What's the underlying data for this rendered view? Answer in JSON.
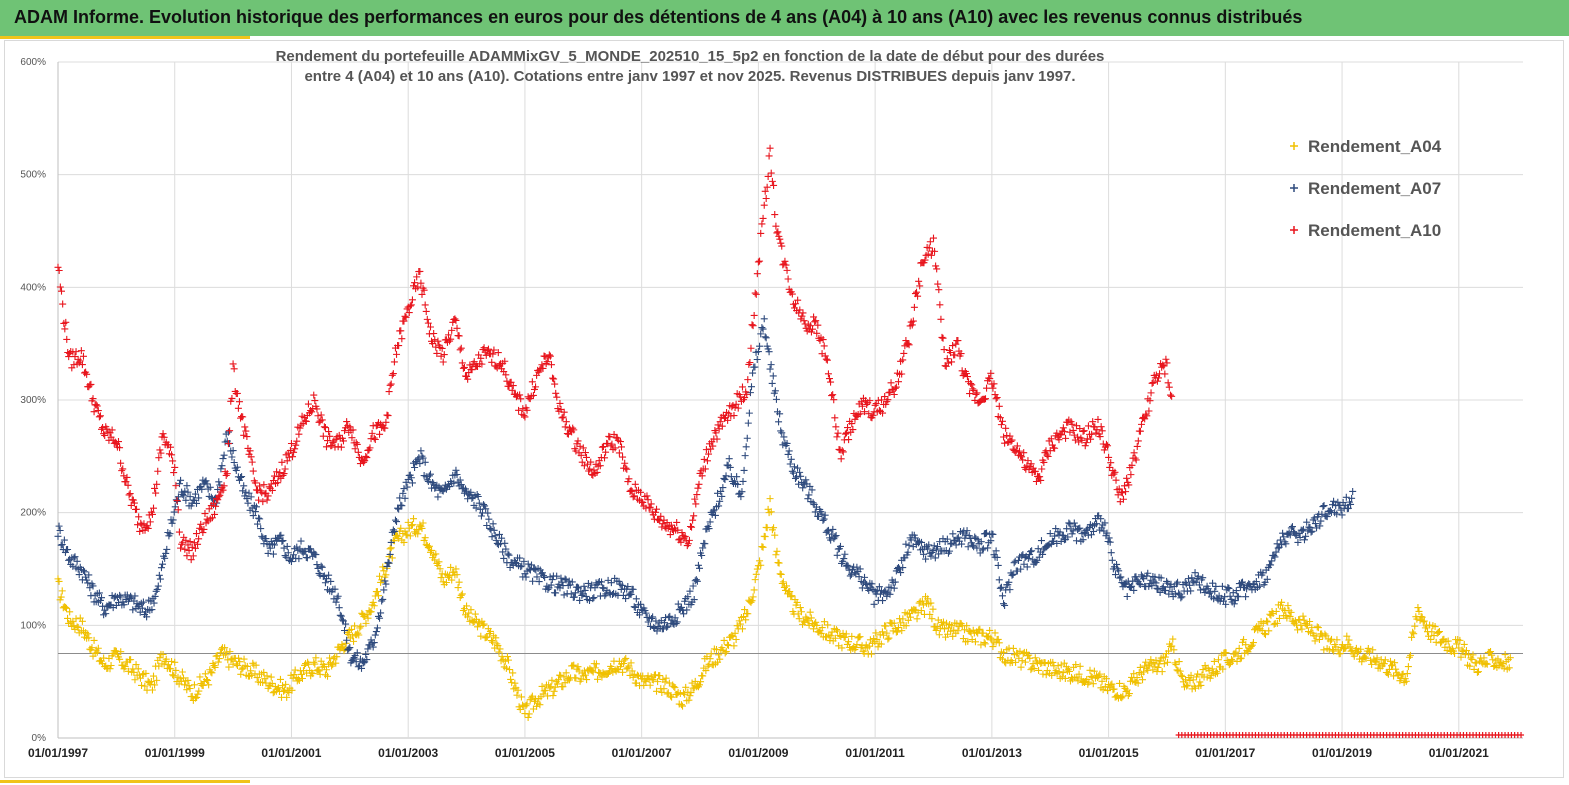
{
  "header": {
    "title": "ADAM Informe. Evolution historique des performances en euros pour des détentions de 4 ans (A04) à 10 ans (A10) avec les revenus connus distribués"
  },
  "chart_data": {
    "type": "scatter",
    "title_line1": "Rendement du portefeuille ADAMMixGV_5_MONDE_202510_15_5p2 en fonction de la date de début pour des durées",
    "title_line2": "entre 4 (A04) et 10 ans (A10). Cotations entre janv 1997 et nov 2025. Revenus DISTRIBUES depuis janv 1997.",
    "y_ticks": [
      "0%",
      "100%",
      "200%",
      "300%",
      "400%",
      "500%",
      "600%"
    ],
    "ylim": [
      0,
      600
    ],
    "x_ticks": [
      "01/01/1997",
      "01/01/1999",
      "01/01/2001",
      "01/01/2003",
      "01/01/2005",
      "01/01/2007",
      "01/01/2009",
      "01/01/2011",
      "01/01/2013",
      "01/01/2015",
      "01/01/2017",
      "01/01/2019",
      "01/01/2021"
    ],
    "xlim": [
      1997.0,
      2022.1
    ],
    "reference_line": 75,
    "grid": true,
    "legend_position": "top-right",
    "series": [
      {
        "name": "Rendement_A04",
        "color": "#f0c000",
        "points": [
          [
            1997.0,
            135
          ],
          [
            1997.2,
            105
          ],
          [
            1997.4,
            100
          ],
          [
            1997.6,
            80
          ],
          [
            1997.8,
            65
          ],
          [
            1998.0,
            72
          ],
          [
            1998.3,
            60
          ],
          [
            1998.6,
            45
          ],
          [
            1998.8,
            75
          ],
          [
            1999.0,
            60
          ],
          [
            1999.3,
            40
          ],
          [
            1999.6,
            55
          ],
          [
            1999.8,
            75
          ],
          [
            2000.0,
            68
          ],
          [
            2000.3,
            60
          ],
          [
            2000.6,
            50
          ],
          [
            2000.9,
            42
          ],
          [
            2001.1,
            55
          ],
          [
            2001.4,
            65
          ],
          [
            2001.6,
            60
          ],
          [
            2001.9,
            85
          ],
          [
            2002.1,
            95
          ],
          [
            2002.4,
            120
          ],
          [
            2002.6,
            150
          ],
          [
            2002.8,
            175
          ],
          [
            2003.0,
            185
          ],
          [
            2003.2,
            190
          ],
          [
            2003.4,
            170
          ],
          [
            2003.6,
            140
          ],
          [
            2003.8,
            150
          ],
          [
            2004.0,
            110
          ],
          [
            2004.3,
            95
          ],
          [
            2004.5,
            85
          ],
          [
            2004.7,
            65
          ],
          [
            2004.9,
            35
          ],
          [
            2005.0,
            20
          ],
          [
            2005.2,
            35
          ],
          [
            2005.5,
            45
          ],
          [
            2005.8,
            58
          ],
          [
            2006.0,
            55
          ],
          [
            2006.3,
            60
          ],
          [
            2006.6,
            68
          ],
          [
            2006.8,
            62
          ],
          [
            2007.0,
            50
          ],
          [
            2007.4,
            48
          ],
          [
            2007.7,
            35
          ],
          [
            2007.9,
            45
          ],
          [
            2008.1,
            65
          ],
          [
            2008.3,
            75
          ],
          [
            2008.6,
            90
          ],
          [
            2008.8,
            110
          ],
          [
            2009.0,
            150
          ],
          [
            2009.1,
            175
          ],
          [
            2009.2,
            210
          ],
          [
            2009.3,
            165
          ],
          [
            2009.5,
            125
          ],
          [
            2009.7,
            110
          ],
          [
            2010.0,
            100
          ],
          [
            2010.3,
            90
          ],
          [
            2010.6,
            85
          ],
          [
            2010.9,
            80
          ],
          [
            2011.2,
            95
          ],
          [
            2011.4,
            100
          ],
          [
            2011.7,
            110
          ],
          [
            2011.9,
            120
          ],
          [
            2012.1,
            95
          ],
          [
            2012.4,
            95
          ],
          [
            2012.7,
            90
          ],
          [
            2013.0,
            90
          ],
          [
            2013.2,
            75
          ],
          [
            2013.5,
            70
          ],
          [
            2013.8,
            65
          ],
          [
            2014.1,
            60
          ],
          [
            2014.4,
            58
          ],
          [
            2014.7,
            55
          ],
          [
            2015.0,
            45
          ],
          [
            2015.3,
            42
          ],
          [
            2015.6,
            60
          ],
          [
            2015.9,
            65
          ],
          [
            2016.1,
            80
          ],
          [
            2016.3,
            45
          ],
          [
            2016.6,
            55
          ],
          [
            2016.9,
            65
          ],
          [
            2017.2,
            75
          ],
          [
            2017.5,
            90
          ],
          [
            2017.8,
            105
          ],
          [
            2018.0,
            115
          ],
          [
            2018.2,
            105
          ],
          [
            2018.5,
            95
          ],
          [
            2018.8,
            80
          ],
          [
            2019.1,
            85
          ],
          [
            2019.3,
            75
          ],
          [
            2019.6,
            70
          ],
          [
            2019.9,
            60
          ],
          [
            2020.1,
            55
          ],
          [
            2020.3,
            115
          ],
          [
            2020.5,
            95
          ],
          [
            2020.8,
            85
          ],
          [
            2021.0,
            80
          ],
          [
            2021.3,
            65
          ],
          [
            2021.6,
            70
          ],
          [
            2021.9,
            65
          ]
        ]
      },
      {
        "name": "Rendement_A07",
        "color": "#2e4a7d",
        "points": [
          [
            1997.0,
            185
          ],
          [
            1997.2,
            160
          ],
          [
            1997.4,
            150
          ],
          [
            1997.6,
            130
          ],
          [
            1997.8,
            115
          ],
          [
            1998.0,
            125
          ],
          [
            1998.3,
            120
          ],
          [
            1998.5,
            112
          ],
          [
            1998.7,
            130
          ],
          [
            1998.9,
            180
          ],
          [
            1999.1,
            225
          ],
          [
            1999.3,
            210
          ],
          [
            1999.5,
            225
          ],
          [
            1999.7,
            210
          ],
          [
            1999.9,
            270
          ],
          [
            2000.0,
            250
          ],
          [
            2000.2,
            215
          ],
          [
            2000.4,
            200
          ],
          [
            2000.6,
            165
          ],
          [
            2000.8,
            175
          ],
          [
            2001.0,
            160
          ],
          [
            2001.2,
            170
          ],
          [
            2001.4,
            160
          ],
          [
            2001.6,
            140
          ],
          [
            2001.8,
            125
          ],
          [
            2002.0,
            75
          ],
          [
            2002.2,
            65
          ],
          [
            2002.4,
            85
          ],
          [
            2002.6,
            135
          ],
          [
            2002.8,
            200
          ],
          [
            2003.0,
            225
          ],
          [
            2003.2,
            250
          ],
          [
            2003.4,
            225
          ],
          [
            2003.6,
            215
          ],
          [
            2003.8,
            235
          ],
          [
            2004.0,
            215
          ],
          [
            2004.2,
            210
          ],
          [
            2004.4,
            190
          ],
          [
            2004.6,
            170
          ],
          [
            2004.8,
            155
          ],
          [
            2005.0,
            150
          ],
          [
            2005.3,
            140
          ],
          [
            2005.6,
            135
          ],
          [
            2005.9,
            130
          ],
          [
            2006.2,
            130
          ],
          [
            2006.5,
            135
          ],
          [
            2006.8,
            130
          ],
          [
            2007.0,
            110
          ],
          [
            2007.3,
            100
          ],
          [
            2007.5,
            105
          ],
          [
            2007.7,
            115
          ],
          [
            2007.9,
            130
          ],
          [
            2008.1,
            180
          ],
          [
            2008.3,
            210
          ],
          [
            2008.5,
            240
          ],
          [
            2008.7,
            215
          ],
          [
            2008.9,
            320
          ],
          [
            2009.0,
            345
          ],
          [
            2009.1,
            370
          ],
          [
            2009.2,
            330
          ],
          [
            2009.4,
            270
          ],
          [
            2009.6,
            240
          ],
          [
            2009.9,
            215
          ],
          [
            2010.2,
            185
          ],
          [
            2010.5,
            155
          ],
          [
            2010.8,
            140
          ],
          [
            2011.0,
            125
          ],
          [
            2011.2,
            130
          ],
          [
            2011.4,
            145
          ],
          [
            2011.6,
            175
          ],
          [
            2011.9,
            165
          ],
          [
            2012.2,
            170
          ],
          [
            2012.5,
            180
          ],
          [
            2012.8,
            170
          ],
          [
            2013.0,
            180
          ],
          [
            2013.2,
            120
          ],
          [
            2013.4,
            155
          ],
          [
            2013.7,
            160
          ],
          [
            2014.0,
            175
          ],
          [
            2014.3,
            185
          ],
          [
            2014.6,
            180
          ],
          [
            2014.9,
            195
          ],
          [
            2015.1,
            150
          ],
          [
            2015.3,
            130
          ],
          [
            2015.6,
            140
          ],
          [
            2015.9,
            135
          ],
          [
            2016.2,
            130
          ],
          [
            2016.5,
            140
          ],
          [
            2016.8,
            130
          ],
          [
            2017.1,
            125
          ],
          [
            2017.4,
            135
          ],
          [
            2017.7,
            145
          ],
          [
            2018.0,
            180
          ],
          [
            2018.3,
            180
          ],
          [
            2018.6,
            195
          ],
          [
            2018.8,
            205
          ],
          [
            2019.0,
            205
          ],
          [
            2019.2,
            215
          ]
        ]
      },
      {
        "name": "Rendement_A10",
        "color": "#e8141c",
        "points": [
          [
            1997.0,
            420
          ],
          [
            1997.1,
            375
          ],
          [
            1997.2,
            335
          ],
          [
            1997.4,
            340
          ],
          [
            1997.6,
            300
          ],
          [
            1997.8,
            270
          ],
          [
            1998.0,
            265
          ],
          [
            1998.2,
            220
          ],
          [
            1998.4,
            190
          ],
          [
            1998.6,
            195
          ],
          [
            1998.8,
            270
          ],
          [
            1999.0,
            240
          ],
          [
            1999.1,
            175
          ],
          [
            1999.3,
            165
          ],
          [
            1999.5,
            190
          ],
          [
            1999.7,
            205
          ],
          [
            1999.9,
            240
          ],
          [
            2000.0,
            325
          ],
          [
            2000.2,
            270
          ],
          [
            2000.4,
            220
          ],
          [
            2000.6,
            215
          ],
          [
            2000.8,
            235
          ],
          [
            2001.0,
            255
          ],
          [
            2001.2,
            280
          ],
          [
            2001.4,
            300
          ],
          [
            2001.6,
            265
          ],
          [
            2001.8,
            260
          ],
          [
            2002.0,
            280
          ],
          [
            2002.2,
            245
          ],
          [
            2002.4,
            270
          ],
          [
            2002.6,
            275
          ],
          [
            2002.8,
            345
          ],
          [
            2003.0,
            380
          ],
          [
            2003.2,
            410
          ],
          [
            2003.4,
            355
          ],
          [
            2003.6,
            340
          ],
          [
            2003.8,
            370
          ],
          [
            2004.0,
            320
          ],
          [
            2004.3,
            340
          ],
          [
            2004.6,
            335
          ],
          [
            2004.8,
            305
          ],
          [
            2005.0,
            290
          ],
          [
            2005.2,
            320
          ],
          [
            2005.4,
            340
          ],
          [
            2005.6,
            290
          ],
          [
            2005.8,
            270
          ],
          [
            2006.0,
            250
          ],
          [
            2006.2,
            235
          ],
          [
            2006.4,
            260
          ],
          [
            2006.6,
            265
          ],
          [
            2006.8,
            220
          ],
          [
            2007.0,
            215
          ],
          [
            2007.2,
            200
          ],
          [
            2007.4,
            190
          ],
          [
            2007.6,
            185
          ],
          [
            2007.8,
            175
          ],
          [
            2008.0,
            230
          ],
          [
            2008.2,
            265
          ],
          [
            2008.4,
            280
          ],
          [
            2008.6,
            295
          ],
          [
            2008.8,
            310
          ],
          [
            2009.0,
            420
          ],
          [
            2009.1,
            470
          ],
          [
            2009.2,
            520
          ],
          [
            2009.3,
            460
          ],
          [
            2009.4,
            430
          ],
          [
            2009.6,
            390
          ],
          [
            2009.8,
            370
          ],
          [
            2010.0,
            365
          ],
          [
            2010.2,
            330
          ],
          [
            2010.4,
            250
          ],
          [
            2010.6,
            280
          ],
          [
            2010.8,
            295
          ],
          [
            2011.0,
            290
          ],
          [
            2011.2,
            300
          ],
          [
            2011.4,
            320
          ],
          [
            2011.6,
            360
          ],
          [
            2011.8,
            420
          ],
          [
            2012.0,
            440
          ],
          [
            2012.2,
            330
          ],
          [
            2012.4,
            350
          ],
          [
            2012.6,
            310
          ],
          [
            2012.8,
            300
          ],
          [
            2013.0,
            320
          ],
          [
            2013.2,
            270
          ],
          [
            2013.4,
            260
          ],
          [
            2013.6,
            240
          ],
          [
            2013.8,
            230
          ],
          [
            2014.0,
            260
          ],
          [
            2014.3,
            275
          ],
          [
            2014.6,
            265
          ],
          [
            2014.8,
            280
          ],
          [
            2015.0,
            250
          ],
          [
            2015.2,
            210
          ],
          [
            2015.4,
            240
          ],
          [
            2015.6,
            280
          ],
          [
            2015.8,
            320
          ],
          [
            2016.0,
            330
          ],
          [
            2016.1,
            290
          ]
        ]
      }
    ]
  }
}
